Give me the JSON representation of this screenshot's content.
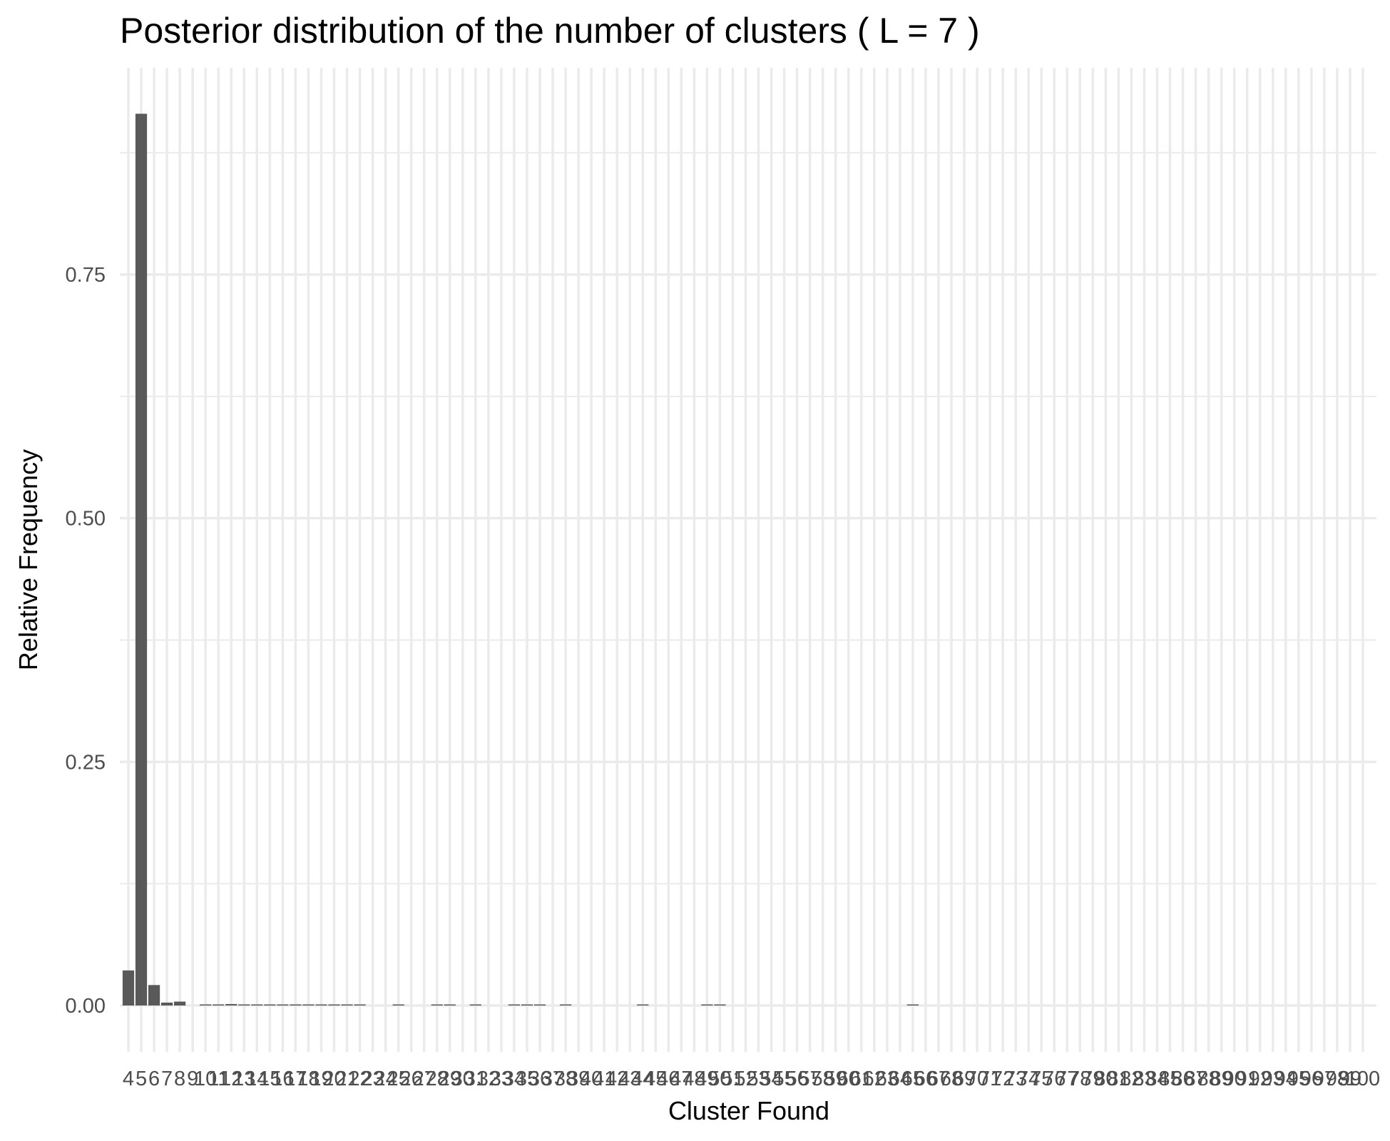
{
  "chart_data": {
    "type": "bar",
    "title": "Posterior distribution of the number of clusters ( L = 7 )",
    "xlabel": "Cluster Found",
    "ylabel": "Relative Frequency",
    "ylim": [
      -0.025,
      0.95
    ],
    "yticks": [
      0.0,
      0.25,
      0.5,
      0.75
    ],
    "ytick_labels": [
      "0.00",
      "0.25",
      "0.50",
      "0.75"
    ],
    "grid": true,
    "legend": "none",
    "bar_color": "#595959",
    "grid_color": "#ebebeb",
    "categories": [
      4,
      5,
      6,
      7,
      8,
      9,
      10,
      11,
      12,
      13,
      14,
      15,
      16,
      17,
      18,
      19,
      20,
      21,
      22,
      23,
      24,
      25,
      26,
      27,
      28,
      29,
      30,
      31,
      32,
      33,
      34,
      35,
      36,
      37,
      38,
      39,
      40,
      41,
      42,
      43,
      44,
      45,
      46,
      47,
      48,
      49,
      50,
      51,
      52,
      53,
      54,
      55,
      56,
      57,
      58,
      59,
      60,
      61,
      62,
      63,
      64,
      65,
      66,
      67,
      68,
      69,
      70,
      71,
      72,
      73,
      74,
      75,
      76,
      77,
      78,
      79,
      80,
      81,
      82,
      83,
      84,
      85,
      86,
      87,
      88,
      89,
      90,
      91,
      92,
      93,
      94,
      95,
      96,
      97,
      98,
      99,
      100
    ],
    "values": [
      0.036,
      0.915,
      0.021,
      0.003,
      0.004,
      0.0,
      0.001,
      0.001,
      0.0015,
      0.0005,
      0.0005,
      0.0005,
      0.0005,
      0.001,
      0.001,
      0.0005,
      0.0005,
      0.0005,
      0.0005,
      0.0,
      0.0,
      0.0005,
      0.0,
      0.0,
      0.0005,
      0.0005,
      0.0,
      0.0005,
      0.0,
      0.0,
      0.0005,
      0.001,
      0.0005,
      0.0,
      0.0005,
      0.0,
      0.0,
      0.0,
      0.0,
      0.0,
      0.0005,
      0.0,
      0.0,
      0.0,
      0.0,
      0.0005,
      0.0005,
      0.0,
      0.0,
      0.0,
      0.0,
      0.0,
      0.0,
      0.0,
      0.0,
      0.0,
      0.0,
      0.0,
      0.0,
      0.0,
      0.0,
      0.0005,
      0.0,
      0.0,
      0.0,
      0.0,
      0.0,
      0.0,
      0.0,
      0.0,
      0.0,
      0.0,
      0.0,
      0.0,
      0.0,
      0.0,
      0.0,
      0.0,
      0.0,
      0.0,
      0.0,
      0.0,
      0.0,
      0.0,
      0.0,
      0.0,
      0.0,
      0.0,
      0.0,
      0.0,
      0.0,
      0.0,
      0.0,
      0.0,
      0.0,
      0.0,
      0.0
    ]
  }
}
